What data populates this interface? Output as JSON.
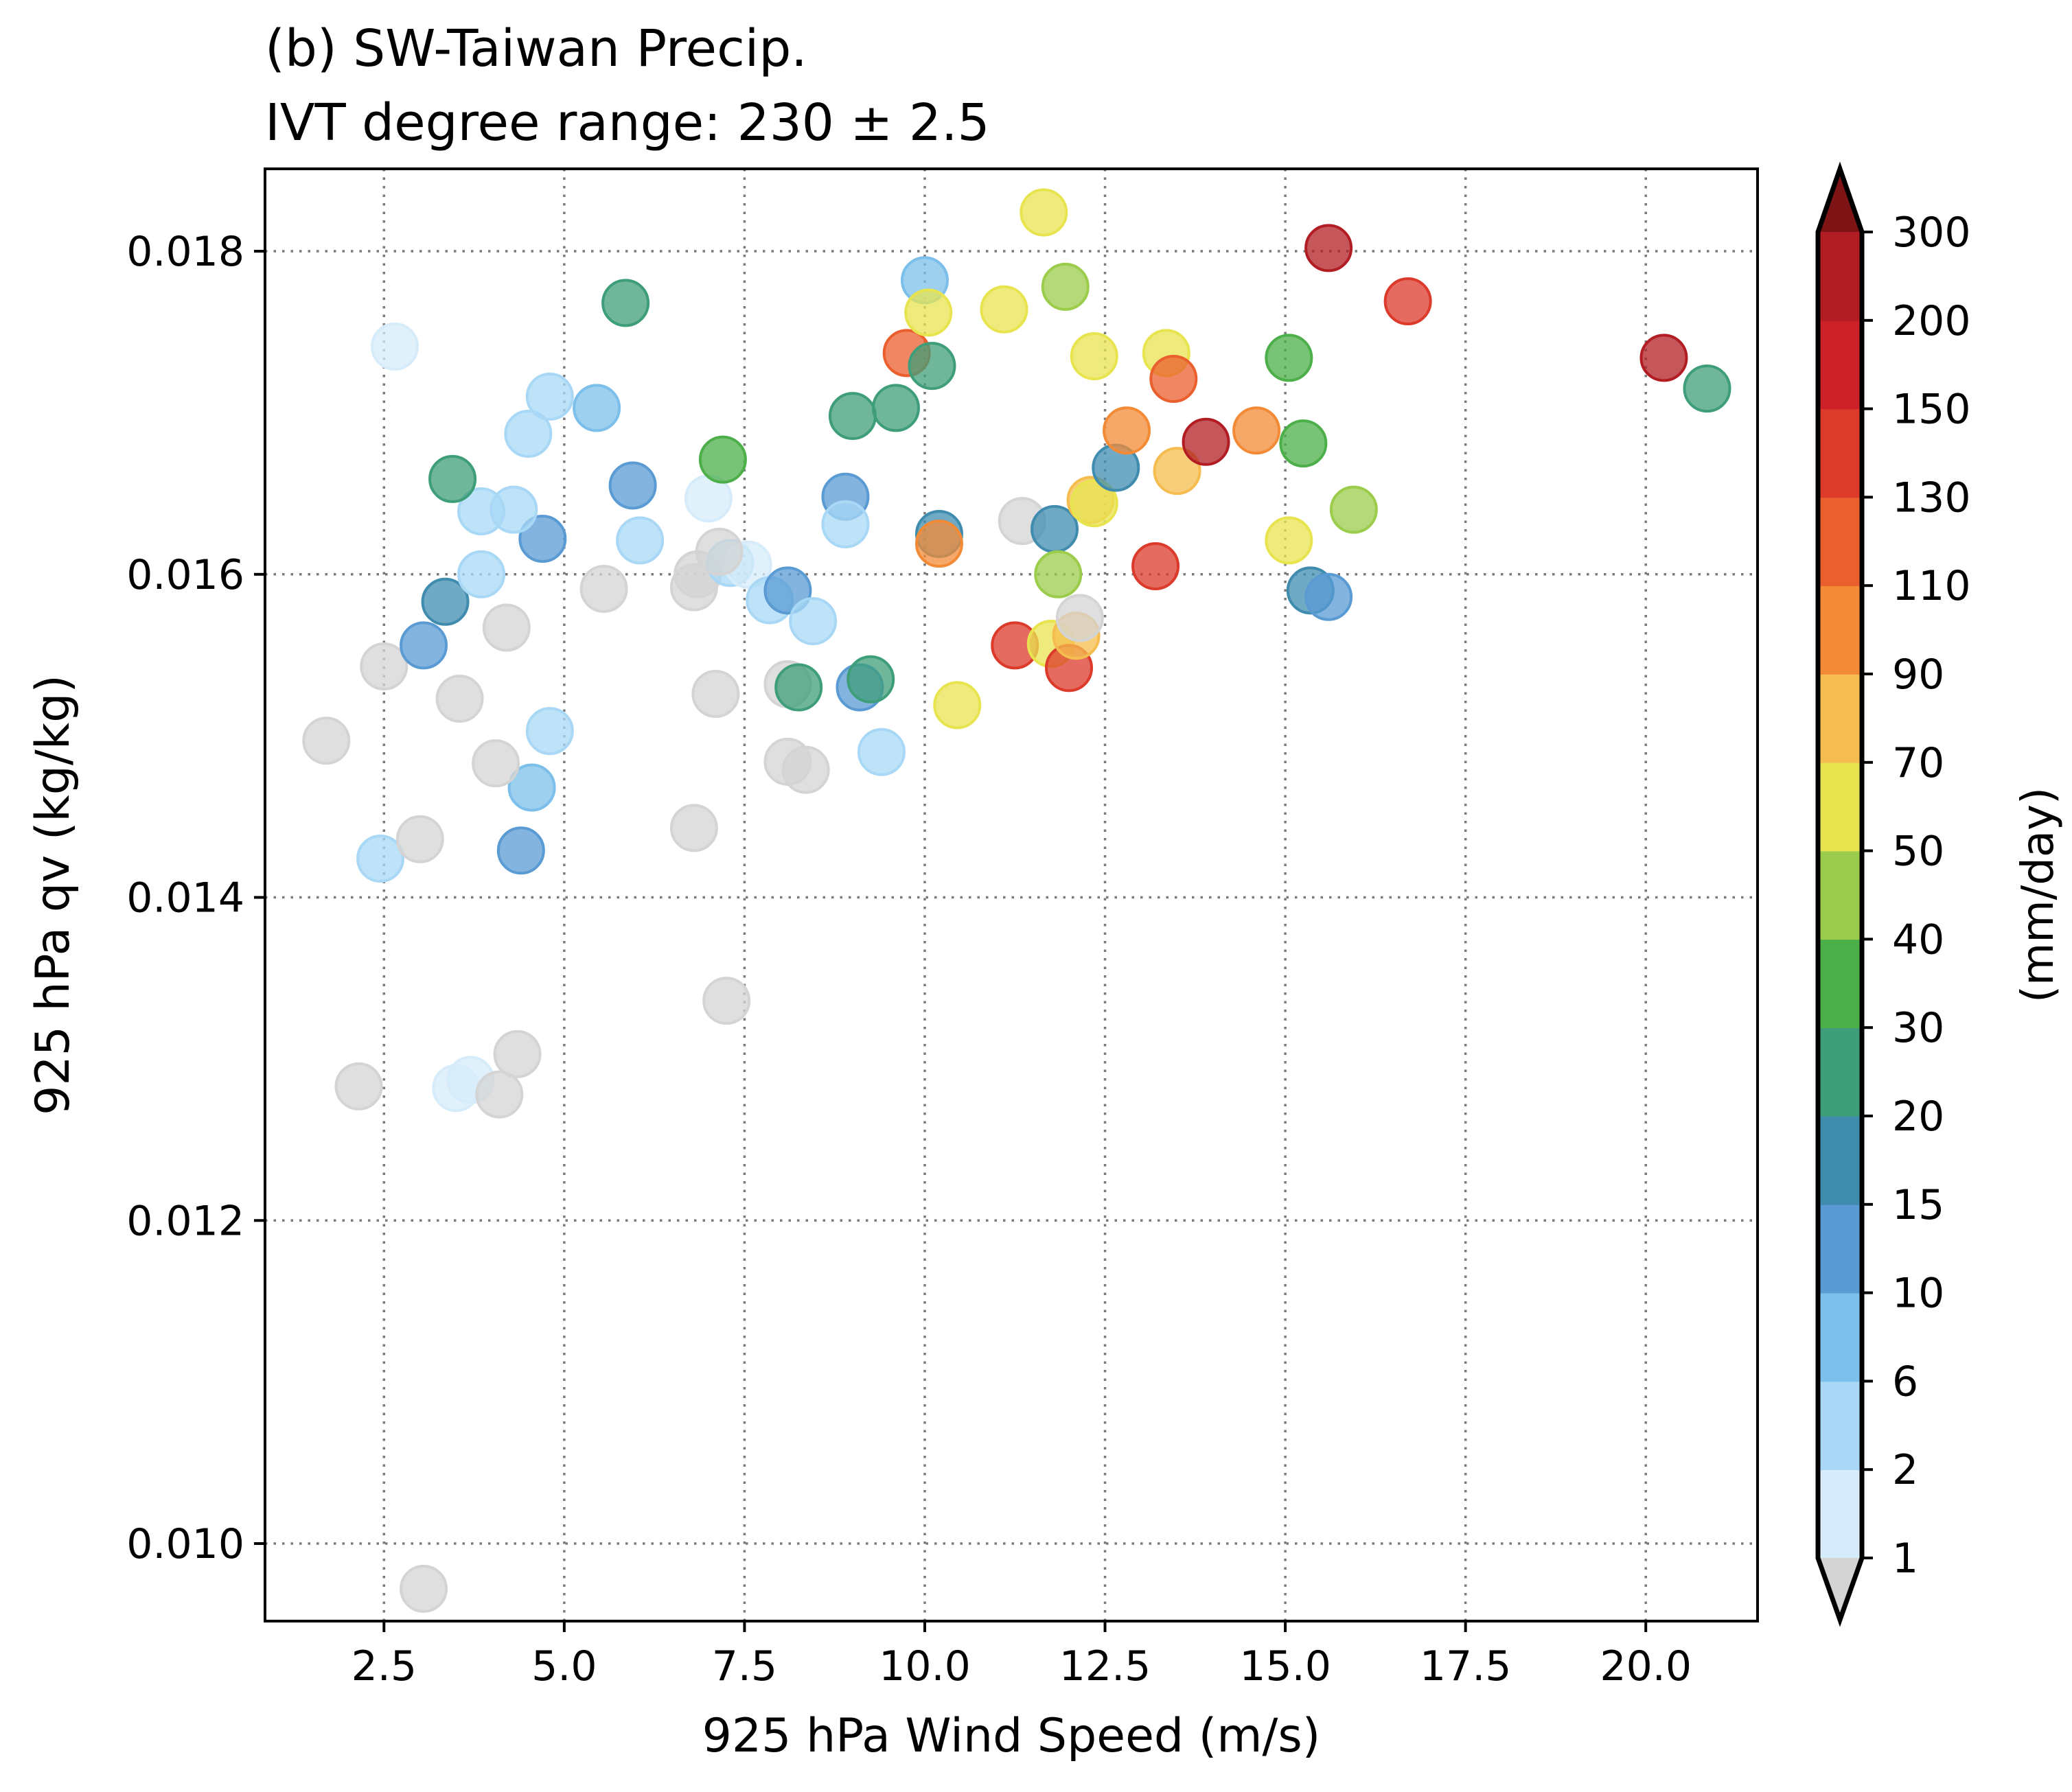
{
  "chart_data": {
    "type": "scatter",
    "title": "(b) SW-Taiwan Precip.",
    "subtitle": "IVT degree range: 230 ± 2.5",
    "xlabel": "925 hPa Wind Speed (m/s)",
    "ylabel": "925 hPa qv (kg/kg)",
    "xlim": [
      0.85,
      21.55
    ],
    "ylim": [
      0.00952,
      0.01851
    ],
    "xticks": [
      2.5,
      5.0,
      7.5,
      10.0,
      12.5,
      15.0,
      17.5,
      20.0
    ],
    "xtick_labels": [
      "2.5",
      "5.0",
      "7.5",
      "10.0",
      "12.5",
      "15.0",
      "17.5",
      "20.0"
    ],
    "yticks": [
      0.01,
      0.012,
      0.014,
      0.016,
      0.018
    ],
    "ytick_labels": [
      "0.010",
      "0.012",
      "0.014",
      "0.016",
      "0.018"
    ],
    "grid": true,
    "colorbar": {
      "label": "(mm/day)",
      "levels": [
        "1",
        "2",
        "6",
        "10",
        "15",
        "20",
        "30",
        "40",
        "50",
        "70",
        "90",
        "110",
        "130",
        "150",
        "200",
        "300"
      ],
      "under_color": "#d4d4d4",
      "colors": [
        "#d6ecfa",
        "#a8d8f5",
        "#7cbfea",
        "#5a9bd4",
        "#3f8caf",
        "#3f9e7a",
        "#4caf4a",
        "#9ccc4c",
        "#e8e450",
        "#f5bd4f",
        "#f38b36",
        "#eb5f2e",
        "#dc3a2b",
        "#cd2128",
        "#b21d23"
      ],
      "over_color": "#7f1416"
    },
    "points": [
      {
        "x": 3.05,
        "y": 0.00972,
        "c": "#d4d4d4"
      },
      {
        "x": 2.15,
        "y": 0.01283,
        "c": "#d4d4d4"
      },
      {
        "x": 3.5,
        "y": 0.01282,
        "c": "#d6ecfa"
      },
      {
        "x": 3.7,
        "y": 0.01287,
        "c": "#d6ecfa"
      },
      {
        "x": 4.1,
        "y": 0.01278,
        "c": "#d4d4d4"
      },
      {
        "x": 4.35,
        "y": 0.01303,
        "c": "#d4d4d4"
      },
      {
        "x": 7.25,
        "y": 0.01336,
        "c": "#d4d4d4"
      },
      {
        "x": 2.45,
        "y": 0.01424,
        "c": "#a8d8f5"
      },
      {
        "x": 3.0,
        "y": 0.01436,
        "c": "#d4d4d4"
      },
      {
        "x": 4.4,
        "y": 0.01429,
        "c": "#5a9bd4"
      },
      {
        "x": 4.55,
        "y": 0.01468,
        "c": "#7cbfea"
      },
      {
        "x": 4.05,
        "y": 0.01483,
        "c": "#d4d4d4"
      },
      {
        "x": 4.8,
        "y": 0.01503,
        "c": "#a8d8f5"
      },
      {
        "x": 6.8,
        "y": 0.01443,
        "c": "#d4d4d4"
      },
      {
        "x": 1.7,
        "y": 0.01497,
        "c": "#d4d4d4"
      },
      {
        "x": 8.1,
        "y": 0.01484,
        "c": "#d4d4d4"
      },
      {
        "x": 8.35,
        "y": 0.01479,
        "c": "#d4d4d4"
      },
      {
        "x": 9.4,
        "y": 0.0149,
        "c": "#a8d8f5"
      },
      {
        "x": 2.5,
        "y": 0.01543,
        "c": "#d4d4d4"
      },
      {
        "x": 3.05,
        "y": 0.01556,
        "c": "#5a9bd4"
      },
      {
        "x": 3.55,
        "y": 0.01523,
        "c": "#d4d4d4"
      },
      {
        "x": 7.1,
        "y": 0.01526,
        "c": "#d4d4d4"
      },
      {
        "x": 8.1,
        "y": 0.01532,
        "c": "#d4d4d4"
      },
      {
        "x": 8.25,
        "y": 0.0153,
        "c": "#3f9e7a"
      },
      {
        "x": 9.1,
        "y": 0.0153,
        "c": "#5a9bd4"
      },
      {
        "x": 9.25,
        "y": 0.01535,
        "c": "#3f9e7a"
      },
      {
        "x": 10.45,
        "y": 0.01519,
        "c": "#e8e450"
      },
      {
        "x": 11.25,
        "y": 0.01556,
        "c": "#dc3a2b"
      },
      {
        "x": 11.75,
        "y": 0.01557,
        "c": "#e8e450"
      },
      {
        "x": 12.0,
        "y": 0.01542,
        "c": "#dc3a2b"
      },
      {
        "x": 12.1,
        "y": 0.01562,
        "c": "#f5bd4f"
      },
      {
        "x": 12.15,
        "y": 0.01573,
        "c": "#d4d4d4"
      },
      {
        "x": 3.35,
        "y": 0.01583,
        "c": "#3f8caf"
      },
      {
        "x": 4.2,
        "y": 0.01567,
        "c": "#d4d4d4"
      },
      {
        "x": 5.55,
        "y": 0.01591,
        "c": "#d4d4d4"
      },
      {
        "x": 6.8,
        "y": 0.01592,
        "c": "#d4d4d4"
      },
      {
        "x": 6.85,
        "y": 0.016,
        "c": "#d4d4d4"
      },
      {
        "x": 7.3,
        "y": 0.01607,
        "c": "#a8d8f5"
      },
      {
        "x": 7.55,
        "y": 0.01606,
        "c": "#d6ecfa"
      },
      {
        "x": 7.85,
        "y": 0.01584,
        "c": "#a8d8f5"
      },
      {
        "x": 8.1,
        "y": 0.0159,
        "c": "#5a9bd4"
      },
      {
        "x": 8.45,
        "y": 0.01571,
        "c": "#a8d8f5"
      },
      {
        "x": 7.15,
        "y": 0.01614,
        "c": "#d4d4d4"
      },
      {
        "x": 3.85,
        "y": 0.016,
        "c": "#a8d8f5"
      },
      {
        "x": 4.7,
        "y": 0.01622,
        "c": "#5a9bd4"
      },
      {
        "x": 6.05,
        "y": 0.01621,
        "c": "#a8d8f5"
      },
      {
        "x": 7.0,
        "y": 0.01647,
        "c": "#d6ecfa"
      },
      {
        "x": 3.85,
        "y": 0.01639,
        "c": "#a8d8f5"
      },
      {
        "x": 4.3,
        "y": 0.0164,
        "c": "#a8d8f5"
      },
      {
        "x": 3.45,
        "y": 0.01659,
        "c": "#3f9e7a"
      },
      {
        "x": 5.95,
        "y": 0.01655,
        "c": "#5a9bd4"
      },
      {
        "x": 8.9,
        "y": 0.01648,
        "c": "#5a9bd4"
      },
      {
        "x": 8.9,
        "y": 0.01631,
        "c": "#a8d8f5"
      },
      {
        "x": 10.2,
        "y": 0.01625,
        "c": "#3f8caf"
      },
      {
        "x": 10.2,
        "y": 0.01619,
        "c": "#f38b36"
      },
      {
        "x": 11.35,
        "y": 0.01633,
        "c": "#d4d4d4"
      },
      {
        "x": 11.8,
        "y": 0.01628,
        "c": "#3f8caf"
      },
      {
        "x": 11.85,
        "y": 0.016,
        "c": "#9ccc4c"
      },
      {
        "x": 12.3,
        "y": 0.01646,
        "c": "#f5bd4f"
      },
      {
        "x": 12.35,
        "y": 0.01644,
        "c": "#e8e450"
      },
      {
        "x": 12.65,
        "y": 0.01666,
        "c": "#3f8caf"
      },
      {
        "x": 13.2,
        "y": 0.01605,
        "c": "#dc3a2b"
      },
      {
        "x": 13.5,
        "y": 0.01664,
        "c": "#f5bd4f"
      },
      {
        "x": 13.9,
        "y": 0.01682,
        "c": "#b21d23"
      },
      {
        "x": 15.05,
        "y": 0.01621,
        "c": "#e8e450"
      },
      {
        "x": 15.35,
        "y": 0.0159,
        "c": "#3f8caf"
      },
      {
        "x": 15.6,
        "y": 0.01586,
        "c": "#5a9bd4"
      },
      {
        "x": 15.95,
        "y": 0.0164,
        "c": "#9ccc4c"
      },
      {
        "x": 15.25,
        "y": 0.01681,
        "c": "#4caf4a"
      },
      {
        "x": 14.6,
        "y": 0.01689,
        "c": "#f38b36"
      },
      {
        "x": 12.8,
        "y": 0.01689,
        "c": "#f38b36"
      },
      {
        "x": 4.5,
        "y": 0.01687,
        "c": "#a8d8f5"
      },
      {
        "x": 4.8,
        "y": 0.0171,
        "c": "#a8d8f5"
      },
      {
        "x": 5.45,
        "y": 0.01703,
        "c": "#7cbfea"
      },
      {
        "x": 7.2,
        "y": 0.01671,
        "c": "#4caf4a"
      },
      {
        "x": 9.0,
        "y": 0.01698,
        "c": "#3f9e7a"
      },
      {
        "x": 9.6,
        "y": 0.01703,
        "c": "#3f9e7a"
      },
      {
        "x": 2.65,
        "y": 0.01741,
        "c": "#d6ecfa"
      },
      {
        "x": 5.85,
        "y": 0.01768,
        "c": "#3f9e7a"
      },
      {
        "x": 9.75,
        "y": 0.01737,
        "c": "#eb5f2e"
      },
      {
        "x": 10.1,
        "y": 0.01729,
        "c": "#3f9e7a"
      },
      {
        "x": 10.0,
        "y": 0.01782,
        "c": "#7cbfea"
      },
      {
        "x": 10.05,
        "y": 0.01762,
        "c": "#e8e450"
      },
      {
        "x": 11.1,
        "y": 0.01764,
        "c": "#e8e450"
      },
      {
        "x": 11.65,
        "y": 0.01824,
        "c": "#e8e450"
      },
      {
        "x": 11.95,
        "y": 0.01778,
        "c": "#9ccc4c"
      },
      {
        "x": 12.35,
        "y": 0.01735,
        "c": "#e8e450"
      },
      {
        "x": 13.35,
        "y": 0.01737,
        "c": "#e8e450"
      },
      {
        "x": 13.45,
        "y": 0.01721,
        "c": "#eb5f2e"
      },
      {
        "x": 15.05,
        "y": 0.01734,
        "c": "#4caf4a"
      },
      {
        "x": 15.6,
        "y": 0.01802,
        "c": "#b21d23"
      },
      {
        "x": 16.7,
        "y": 0.01769,
        "c": "#dc3a2b"
      },
      {
        "x": 20.25,
        "y": 0.01734,
        "c": "#b21d23"
      },
      {
        "x": 20.85,
        "y": 0.01715,
        "c": "#3f9e7a"
      }
    ]
  }
}
